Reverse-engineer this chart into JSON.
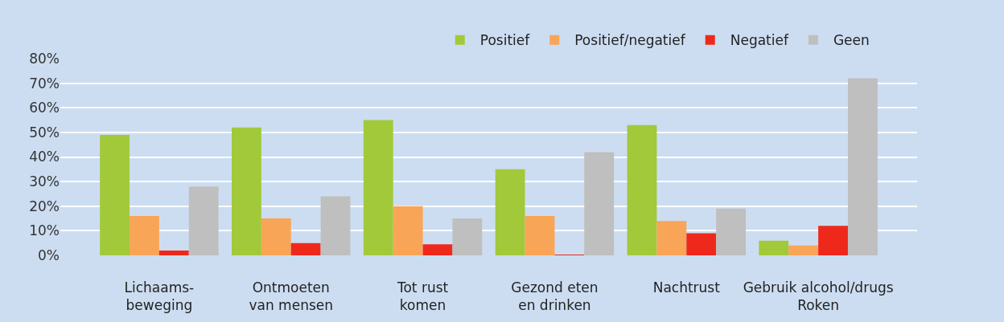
{
  "chart_data": {
    "type": "bar",
    "categories": [
      "Lichaams-\nbeweging",
      "Ontmoeten\nvan mensen",
      "Tot rust\nkomen",
      "Gezond eten\nen drinken",
      "Nachtrust",
      "Gebruik alcohol/drugs\nRoken"
    ],
    "series": [
      {
        "name": "Positief",
        "color": "#a2c93a",
        "values": [
          49,
          52,
          55,
          35,
          53,
          6
        ]
      },
      {
        "name": "Positief/negatief",
        "color": "#f9a557",
        "values": [
          16,
          15,
          20,
          16,
          14,
          4
        ]
      },
      {
        "name": "Negatief",
        "color": "#ee291c",
        "values": [
          2,
          5,
          4.5,
          0.3,
          9,
          12
        ]
      },
      {
        "name": "Geen",
        "color": "#bfbfbf",
        "values": [
          28,
          24,
          15,
          42,
          19,
          72
        ]
      }
    ],
    "ylim": [
      0,
      80
    ],
    "yticks": [
      {
        "value": 0,
        "label": "0%"
      },
      {
        "value": 10,
        "label": "10%"
      },
      {
        "value": 20,
        "label": "20%"
      },
      {
        "value": 30,
        "label": "30%"
      },
      {
        "value": 40,
        "label": "40%"
      },
      {
        "value": 50,
        "label": "50%"
      },
      {
        "value": 60,
        "label": "60%"
      },
      {
        "value": 70,
        "label": "70%"
      },
      {
        "value": 80,
        "label": "80%"
      }
    ],
    "grid": "y",
    "legend": "top"
  }
}
